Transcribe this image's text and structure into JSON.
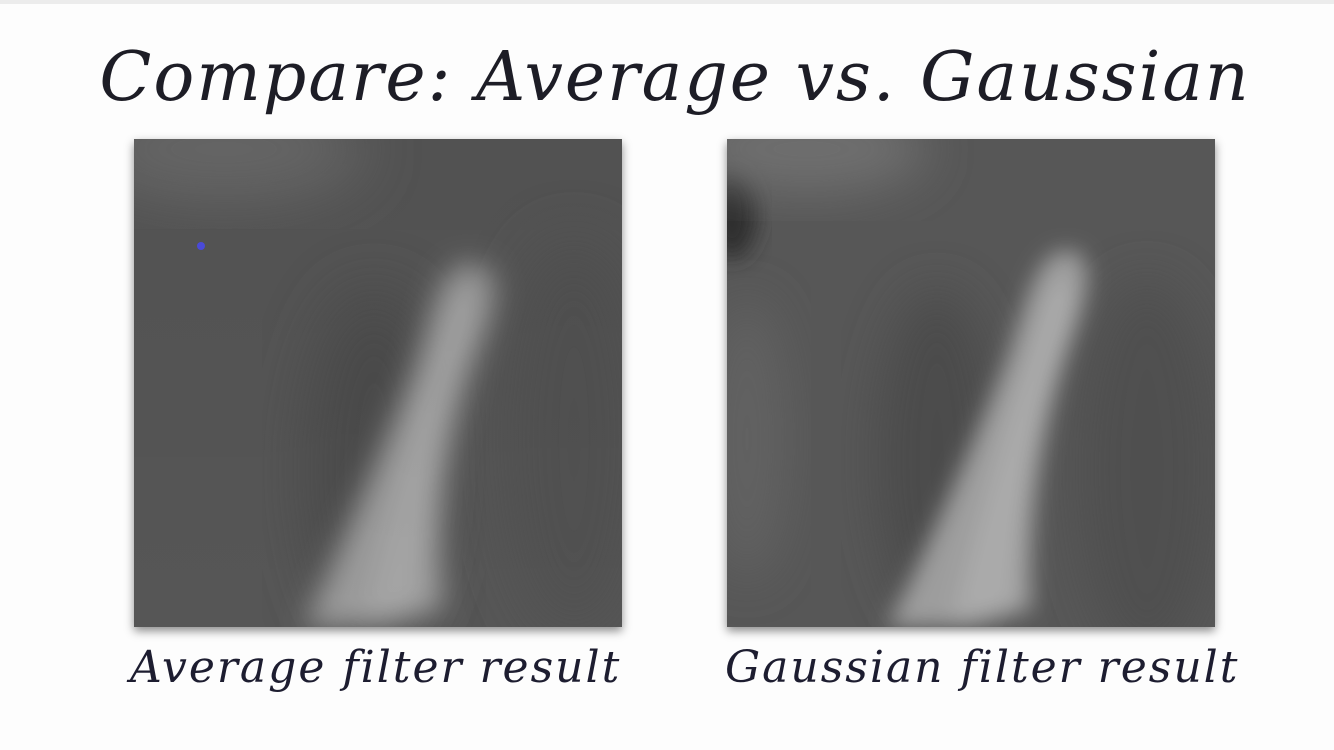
{
  "title": "Compare: Average vs. Gaussian",
  "panels": {
    "average": {
      "caption": "Average filter result"
    },
    "gaussian": {
      "caption": "Gaussian filter result"
    }
  },
  "colors": {
    "background": "#fdfdfd",
    "ink": "#1d1d26",
    "image_base": "#565656",
    "highlight": "#a2a2a2",
    "marker": "#4a4ad8"
  }
}
